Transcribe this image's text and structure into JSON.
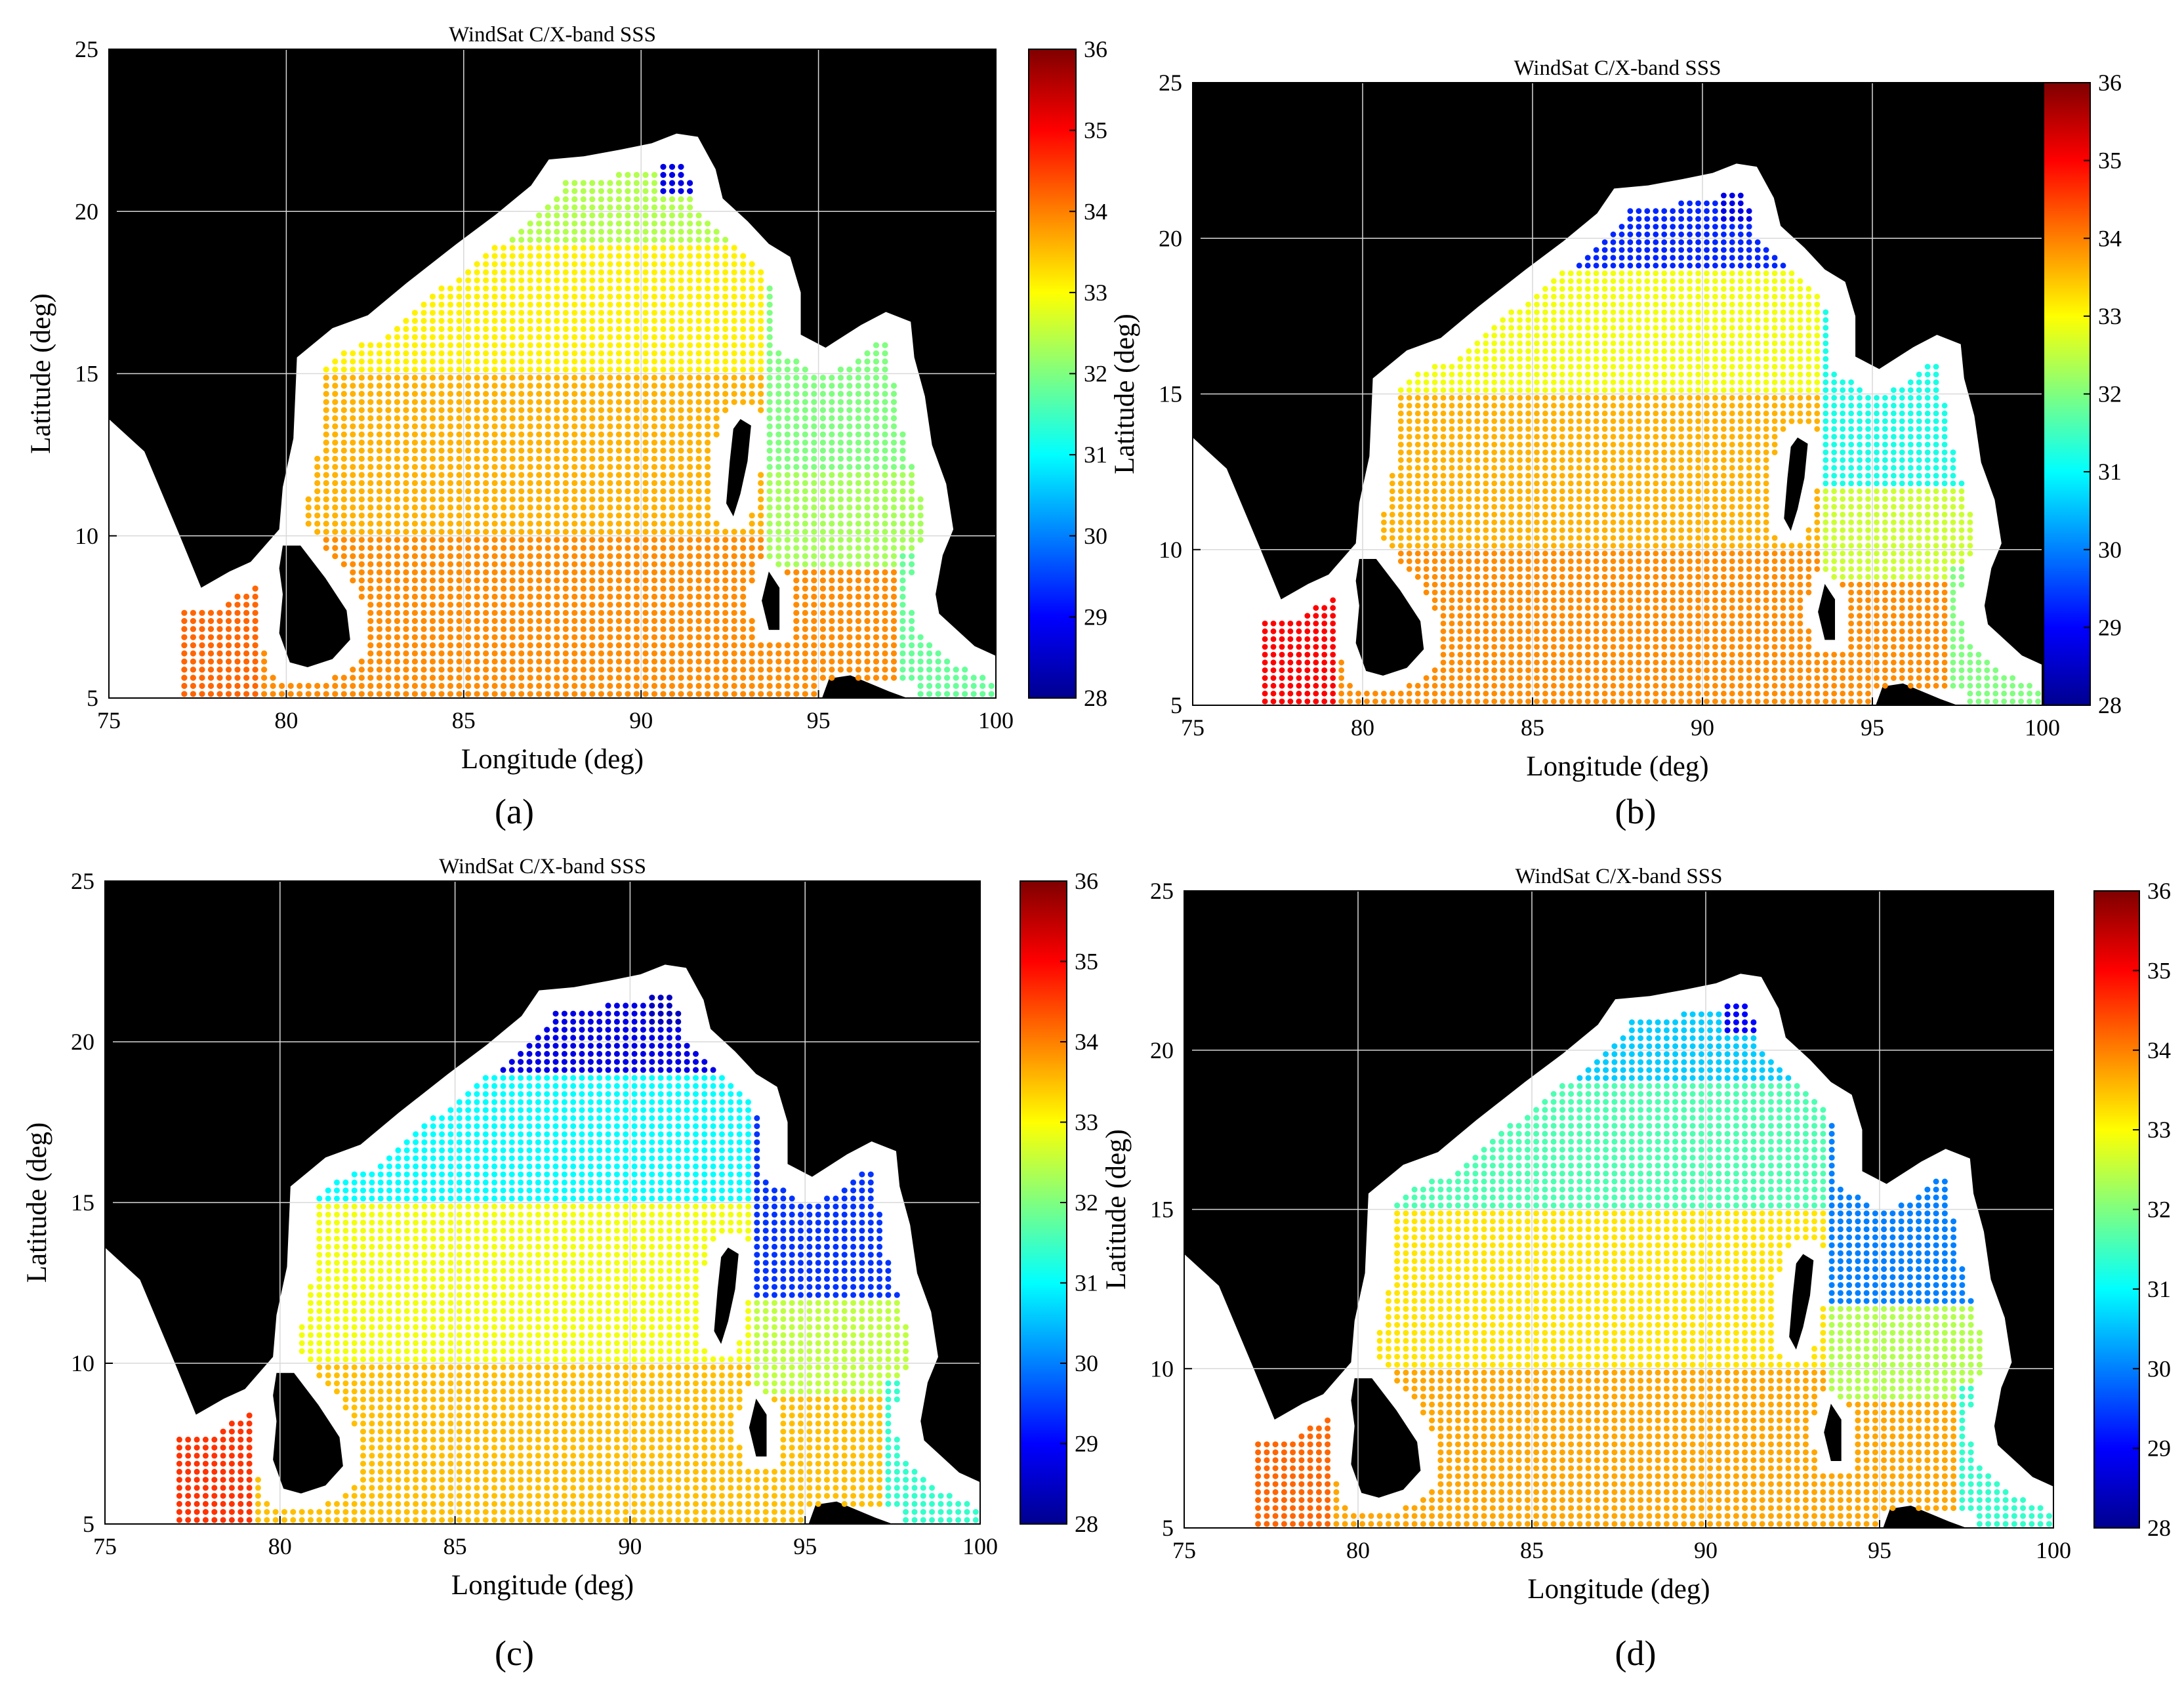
{
  "figure": {
    "panels": [
      {
        "id": "a",
        "label": "(a)"
      },
      {
        "id": "b",
        "label": "(b)"
      },
      {
        "id": "c",
        "label": "(c)"
      },
      {
        "id": "d",
        "label": "(d)"
      }
    ]
  },
  "chart_data": [
    {
      "panel": "(a)",
      "type": "scatter",
      "title": "WindSat C/X-band SSS",
      "xlabel": "Longitude (deg)",
      "ylabel": "Latitude (deg)",
      "xlim": [
        75,
        100
      ],
      "ylim": [
        5,
        25
      ],
      "xticks": [
        75,
        80,
        85,
        90,
        95,
        100
      ],
      "yticks": [
        5,
        10,
        15,
        20,
        25
      ],
      "colorbar": {
        "min": 28,
        "max": 36,
        "ticks": [
          28,
          29,
          30,
          31,
          32,
          33,
          34,
          35,
          36
        ],
        "colormap": "jet"
      },
      "land_color": "#000000",
      "grid": true,
      "salinity_by_region": {
        "arabian_sea_coast_77_79E": 34.2,
        "south_0_10N": 33.9,
        "central_10_15N": 33.6,
        "north_15_19N": 33.1,
        "northern_head_19_21N": 32.4,
        "ganges_mouth_91E": 28.8,
        "andaman_sea_north": 32.0,
        "andaman_sea_south": 32.3,
        "malacca_approach_98_100E": 31.8
      }
    },
    {
      "panel": "(b)",
      "type": "scatter",
      "title": "WindSat C/X-band SSS",
      "xlabel": "Longitude (deg)",
      "ylabel": "Latitude (deg)",
      "xlim": [
        75,
        100
      ],
      "ylim": [
        5,
        25
      ],
      "xticks": [
        75,
        80,
        85,
        90,
        95,
        100
      ],
      "yticks": [
        5,
        10,
        15,
        20,
        25
      ],
      "colorbar": {
        "min": 28,
        "max": 36,
        "ticks": [
          28,
          29,
          30,
          31,
          32,
          33,
          34,
          35,
          36
        ],
        "colormap": "jet"
      },
      "land_color": "#000000",
      "grid": true,
      "salinity_by_region": {
        "arabian_sea_coast_77_79E": 35.0,
        "south_0_10N": 33.9,
        "central_10_15N": 33.6,
        "north_15_19N": 32.9,
        "northern_head_19_21N": 29.3,
        "ganges_mouth_91E": 28.8,
        "andaman_sea_north": 31.2,
        "andaman_sea_south": 32.6,
        "malacca_approach_98_100E": 32.0
      }
    },
    {
      "panel": "(c)",
      "type": "scatter",
      "title": "WindSat C/X-band SSS",
      "xlabel": "Longitude (deg)",
      "ylabel": "Latitude (deg)",
      "xlim": [
        75,
        100
      ],
      "ylim": [
        5,
        25
      ],
      "xticks": [
        75,
        80,
        85,
        90,
        95,
        100
      ],
      "yticks": [
        5,
        10,
        15,
        20,
        25
      ],
      "colorbar": {
        "min": 28,
        "max": 36,
        "ticks": [
          28,
          29,
          30,
          31,
          32,
          33,
          34,
          35,
          36
        ],
        "colormap": "jet"
      },
      "land_color": "#000000",
      "grid": true,
      "salinity_by_region": {
        "arabian_sea_coast_77_79E": 34.6,
        "south_0_10N": 33.5,
        "central_10_15N": 32.9,
        "north_15_19N": 31.0,
        "northern_head_19_21N": 28.8,
        "ganges_mouth_91E": 28.5,
        "andaman_sea_north": 29.4,
        "andaman_sea_south": 32.5,
        "malacca_approach_98_100E": 31.4
      }
    },
    {
      "panel": "(d)",
      "type": "scatter",
      "title": "WindSat C/X-band SSS",
      "xlabel": "Longitude (deg)",
      "ylabel": "Latitude (deg)",
      "xlim": [
        75,
        100
      ],
      "ylim": [
        5,
        25
      ],
      "xticks": [
        75,
        80,
        85,
        90,
        95,
        100
      ],
      "yticks": [
        5,
        10,
        15,
        20,
        25
      ],
      "colorbar": {
        "min": 28,
        "max": 36,
        "ticks": [
          28,
          29,
          30,
          31,
          32,
          33,
          34,
          35,
          36
        ],
        "colormap": "jet"
      },
      "land_color": "#000000",
      "grid": true,
      "salinity_by_region": {
        "arabian_sea_coast_77_79E": 34.2,
        "south_0_10N": 33.7,
        "central_10_15N": 33.2,
        "north_15_19N": 31.6,
        "northern_head_19_21N": 30.6,
        "ganges_mouth_91E": 29.0,
        "andaman_sea_north": 30.0,
        "andaman_sea_south": 32.4,
        "malacca_approach_98_100E": 31.4
      }
    }
  ]
}
